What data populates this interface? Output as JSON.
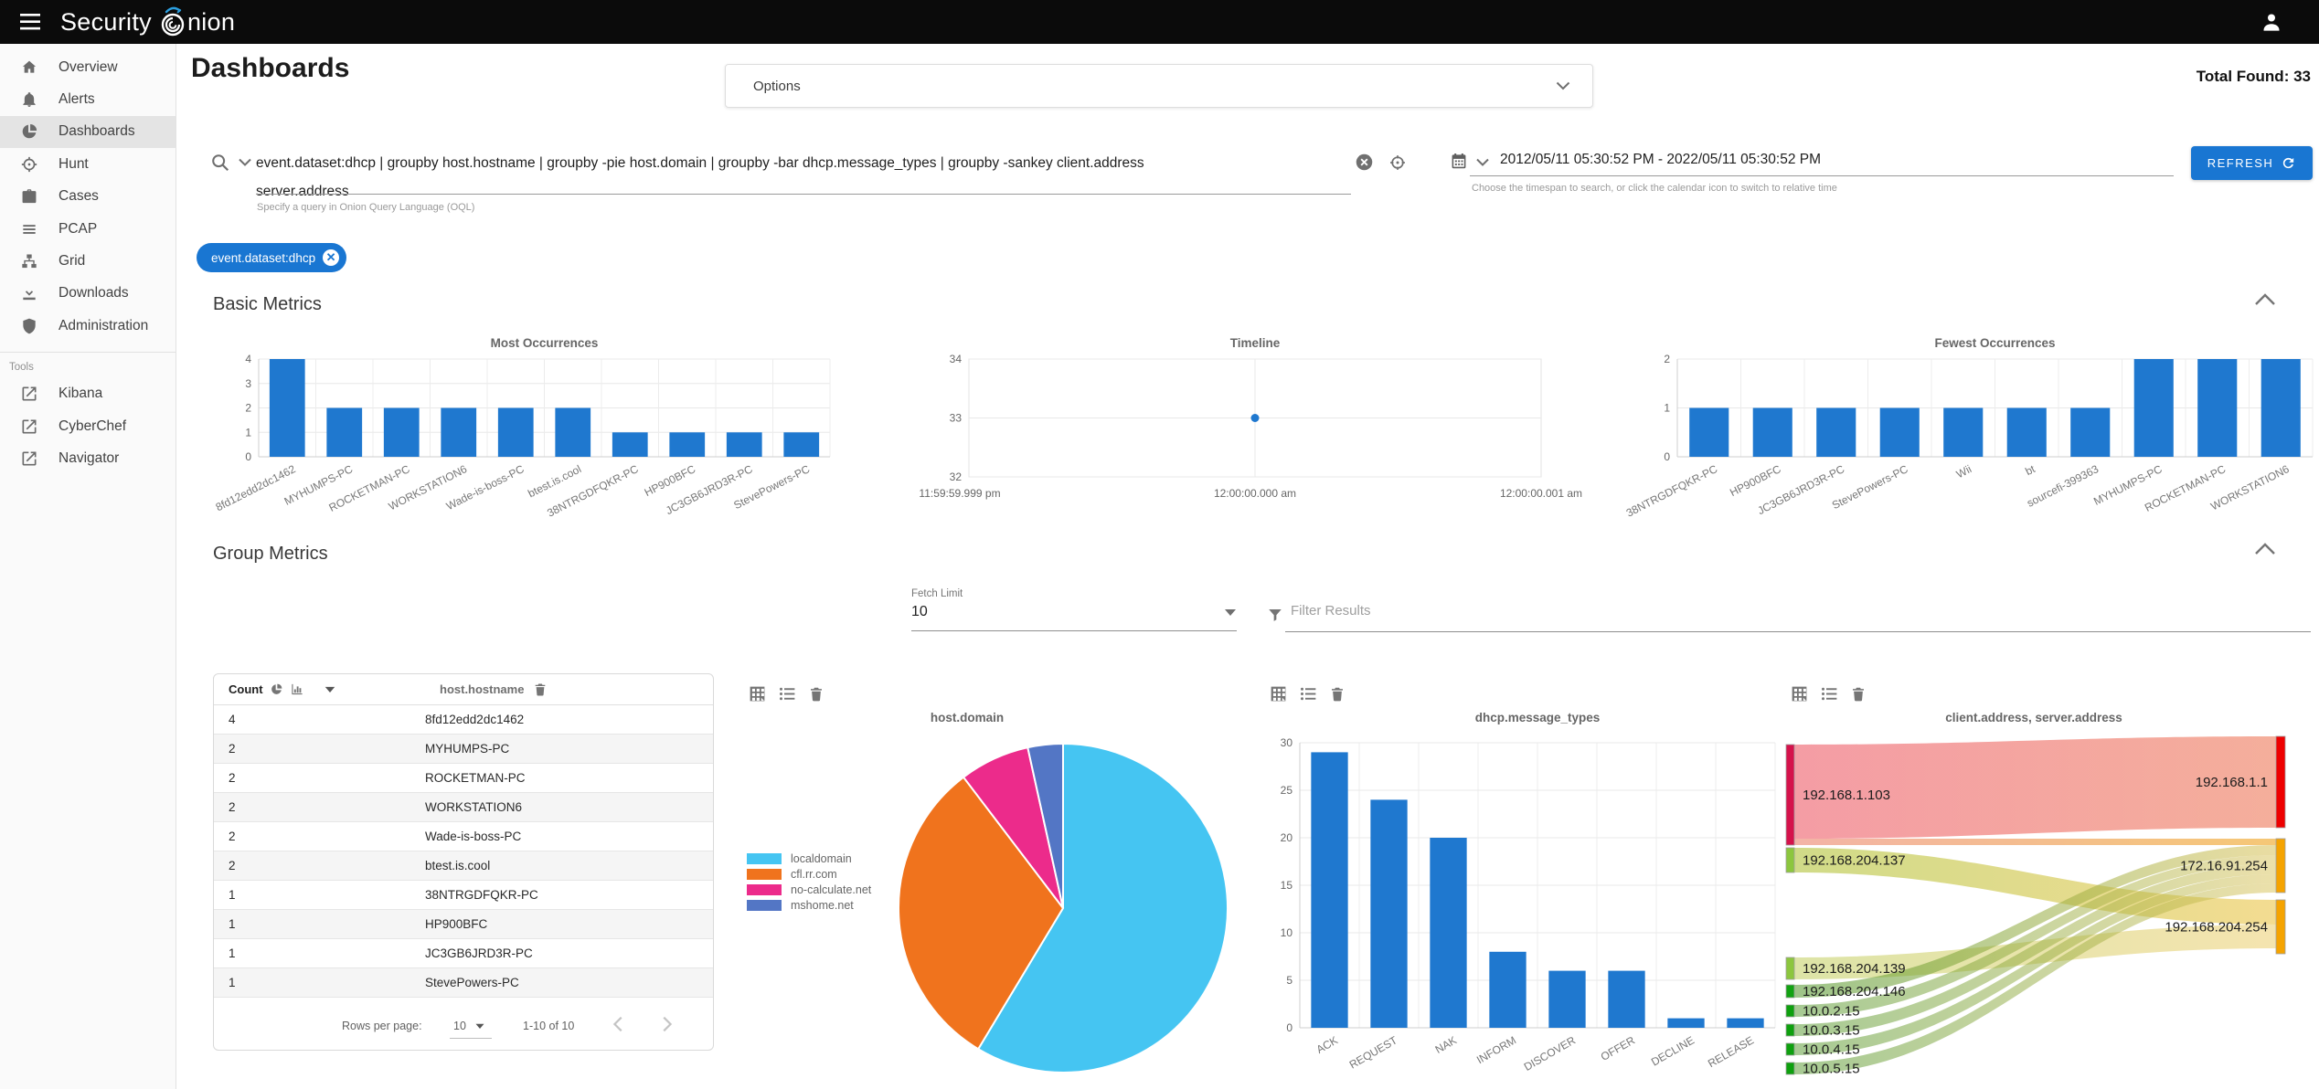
{
  "topbar": {
    "brand": "Security Onion",
    "brand_prefix": "Security",
    "brand_suffix": "nion"
  },
  "sidebar": {
    "items": [
      {
        "label": "Overview",
        "icon": "home",
        "active": false
      },
      {
        "label": "Alerts",
        "icon": "bell",
        "active": false
      },
      {
        "label": "Dashboards",
        "icon": "dashboards",
        "active": true
      },
      {
        "label": "Hunt",
        "icon": "hunt",
        "active": false
      },
      {
        "label": "Cases",
        "icon": "cases",
        "active": false
      },
      {
        "label": "PCAP",
        "icon": "pcap",
        "active": false
      },
      {
        "label": "Grid",
        "icon": "grid",
        "active": false
      },
      {
        "label": "Downloads",
        "icon": "downloads",
        "active": false
      },
      {
        "label": "Administration",
        "icon": "administration",
        "active": false
      }
    ],
    "tools_label": "Tools",
    "tools": [
      {
        "label": "Kibana",
        "icon": "external"
      },
      {
        "label": "CyberChef",
        "icon": "external"
      },
      {
        "label": "Navigator",
        "icon": "external"
      }
    ]
  },
  "header": {
    "title": "Dashboards",
    "options_label": "Options",
    "total_found": "Total Found: 33"
  },
  "search": {
    "query_lines": [
      "event.dataset:dhcp | groupby host.hostname | groupby -pie host.domain | groupby -bar dhcp.message_types | groupby -sankey client.address",
      "server.address"
    ],
    "hint": "Specify a query in Onion Query Language (OQL)",
    "chip_label": "event.dataset:dhcp"
  },
  "timespan": {
    "value": "2012/05/11 05:30:52 PM - 2022/05/11 05:30:52 PM",
    "hint": "Choose the timespan to search, or click the calendar icon to switch to relative time",
    "refresh_label": "REFRESH"
  },
  "sections": {
    "basic_metrics": "Basic Metrics",
    "group_metrics": "Group Metrics"
  },
  "group_controls": {
    "fetch_limit_label": "Fetch Limit",
    "fetch_limit_value": "10",
    "filter_placeholder": "Filter Results"
  },
  "table": {
    "columns": [
      "Count",
      "host.hostname"
    ],
    "rows": [
      [
        "4",
        "8fd12edd2dc1462"
      ],
      [
        "2",
        "MYHUMPS-PC"
      ],
      [
        "2",
        "ROCKETMAN-PC"
      ],
      [
        "2",
        "WORKSTATION6"
      ],
      [
        "2",
        "Wade-is-boss-PC"
      ],
      [
        "2",
        "btest.is.cool"
      ],
      [
        "1",
        "38NTRGDFQKR-PC"
      ],
      [
        "1",
        "HP900BFC"
      ],
      [
        "1",
        "JC3GB6JRD3R-PC"
      ],
      [
        "1",
        "StevePowers-PC"
      ]
    ],
    "rows_per_page_label": "Rows per page:",
    "rows_per_page_value": "10",
    "range_text": "1-10 of 10"
  },
  "chart_data": [
    {
      "type": "bar",
      "title": "Most Occurrences",
      "categories": [
        "8fd12edd2dc1462",
        "MYHUMPS-PC",
        "ROCKETMAN-PC",
        "WORKSTATION6",
        "Wade-is-boss-PC",
        "btest.is.cool",
        "38NTRGDFQKR-PC",
        "HP900BFC",
        "JC3GB6JRD3R-PC",
        "StevePowers-PC"
      ],
      "values": [
        4,
        2,
        2,
        2,
        2,
        2,
        1,
        1,
        1,
        1
      ],
      "ylim": [
        0,
        4
      ],
      "yticks": [
        0,
        1,
        2,
        3,
        4
      ],
      "bar_color": "#1f78cf",
      "grid": true
    },
    {
      "type": "scatter",
      "title": "Timeline",
      "x_labels": [
        "11:59:59.999 pm",
        "12:00:00.000 am",
        "12:00:00.001 am"
      ],
      "points": [
        {
          "x": "12:00:00.000 am",
          "y": 33
        }
      ],
      "ylim": [
        32,
        34
      ],
      "yticks": [
        32,
        33,
        34
      ],
      "point_color": "#1f78cf",
      "grid": true
    },
    {
      "type": "bar",
      "title": "Fewest Occurrences",
      "categories": [
        "38NTRGDFQKR-PC",
        "HP900BFC",
        "JC3GB6JRD3R-PC",
        "StevePowers-PC",
        "Wii",
        "bt",
        "sourcefi-399363",
        "MYHUMPS-PC",
        "ROCKETMAN-PC",
        "WORKSTATION6"
      ],
      "values": [
        1,
        1,
        1,
        1,
        1,
        1,
        1,
        2,
        2,
        2
      ],
      "ylim": [
        0,
        2
      ],
      "yticks": [
        0,
        1,
        2
      ],
      "bar_color": "#1f78cf",
      "grid": true
    },
    {
      "type": "pie",
      "title": "host.domain",
      "labels": [
        "localdomain",
        "cfl.rr.com",
        "no-calculate.net",
        "mshome.net"
      ],
      "values": [
        17,
        9,
        2,
        1
      ],
      "colors": [
        "#45C5F2",
        "#F0731D",
        "#EC2B8B",
        "#5376C5"
      ],
      "legend_position": "left"
    },
    {
      "type": "bar",
      "title": "dhcp.message_types",
      "categories": [
        "ACK",
        "REQUEST",
        "NAK",
        "INFORM",
        "DISCOVER",
        "OFFER",
        "DECLINE",
        "RELEASE"
      ],
      "values": [
        29,
        24,
        20,
        8,
        6,
        6,
        1,
        1
      ],
      "ylim": [
        0,
        30
      ],
      "yticks": [
        0,
        5,
        10,
        15,
        20,
        25,
        30
      ],
      "bar_color": "#1f78cf",
      "grid": true
    },
    {
      "type": "sankey",
      "title": "client.address, server.address",
      "nodes": [
        {
          "id": "192.168.1.103",
          "side": "left",
          "color": "#D5124B"
        },
        {
          "id": "192.168.204.137",
          "side": "left",
          "color": "#8CC63E"
        },
        {
          "id": "192.168.204.139",
          "side": "left",
          "color": "#8CC63E"
        },
        {
          "id": "192.168.204.146",
          "side": "left",
          "color": "#12A212"
        },
        {
          "id": "10.0.2.15",
          "side": "left",
          "color": "#0EA00E"
        },
        {
          "id": "10.0.3.15",
          "side": "left",
          "color": "#0EA00E"
        },
        {
          "id": "10.0.4.15",
          "side": "left",
          "color": "#0EA00E"
        },
        {
          "id": "10.0.5.15",
          "side": "left",
          "color": "#0EA00E"
        },
        {
          "id": "192.168.1.1",
          "side": "right",
          "color": "#EE0000"
        },
        {
          "id": "172.16.91.254",
          "side": "right",
          "color": "#F5A300"
        },
        {
          "id": "192.168.204.254",
          "side": "right",
          "color": "#F5A300"
        }
      ],
      "links": [
        {
          "source": "192.168.1.103",
          "target": "192.168.1.1",
          "value": 15
        },
        {
          "source": "192.168.1.103",
          "target": "172.16.91.254",
          "value": 1
        },
        {
          "source": "192.168.204.137",
          "target": "192.168.204.254",
          "value": 4
        },
        {
          "source": "192.168.204.139",
          "target": "192.168.204.254",
          "value": 3
        },
        {
          "source": "192.168.204.146",
          "target": "172.16.91.254",
          "value": 2
        },
        {
          "source": "10.0.2.15",
          "target": "172.16.91.254",
          "value": 2
        },
        {
          "source": "10.0.3.15",
          "target": "172.16.91.254",
          "value": 2
        },
        {
          "source": "10.0.4.15",
          "target": "172.16.91.254",
          "value": 2
        },
        {
          "source": "10.0.5.15",
          "target": "172.16.91.254",
          "value": 2
        }
      ]
    }
  ],
  "colors": {
    "accent": "#1976d2",
    "bar": "#1f78cf",
    "topbar": "#0b0b0b"
  }
}
